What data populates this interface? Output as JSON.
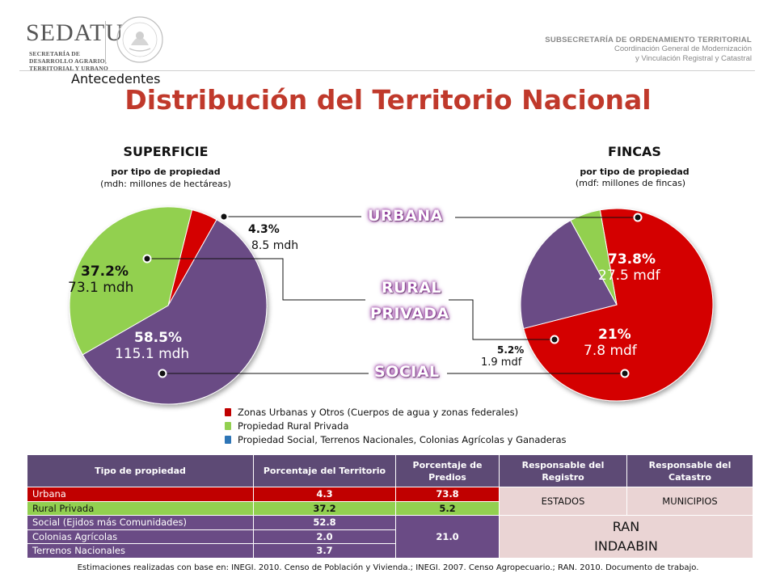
{
  "header": {
    "logo_text": "SEDATU",
    "logo_sub": [
      "SECRETARÍA DE",
      "DESARROLLO AGRARIO,",
      "TERRITORIAL Y URBANO"
    ],
    "right_line1": "SUBSECRETARÍA DE ORDENAMIENTO TERRITORIAL",
    "right_line2": "Coordinación General de Modernización",
    "right_line3": "y Vinculación Registral y Catastral"
  },
  "section_label": "Antecedentes",
  "title": "Distribución del Territorio Nacional",
  "superficie": {
    "title": "SUPERFICIE",
    "subtitle": "por tipo de propiedad",
    "unit": "(mdh: millones de hectáreas)"
  },
  "fincas": {
    "title": "FINCAS",
    "subtitle": "por tipo de propiedad",
    "unit": "(mdf: millones de fincas)"
  },
  "categories": {
    "urbana": "URBANA",
    "rural_1": "RURAL",
    "rural_2": "PRIVADA",
    "social": "SOCIAL"
  },
  "colors": {
    "urbana": "#d40000",
    "rural": "#92d050",
    "social": "#6a4b85",
    "title": "#c0392b",
    "table_header": "#5d4a75"
  },
  "chart_data": [
    {
      "type": "pie",
      "title": "SUPERFICIE",
      "categories": [
        "Urbana",
        "Rural Privada",
        "Social"
      ],
      "values": [
        4.3,
        37.2,
        58.5
      ],
      "labels_pct": [
        "4.3%",
        "37.2%",
        "58.5%"
      ],
      "labels_val": [
        "8.5 mdh",
        "73.1 mdh",
        "115.1 mdh"
      ],
      "absolute_values": [
        8.5,
        73.1,
        115.1
      ]
    },
    {
      "type": "pie",
      "title": "FINCAS",
      "categories": [
        "Urbana",
        "Rural Privada",
        "Social"
      ],
      "values": [
        73.8,
        5.2,
        21
      ],
      "labels_pct": [
        "73.8%",
        "5.2%",
        "21%"
      ],
      "labels_val": [
        "27.5 mdf",
        "1.9 mdf",
        "7.8 mdf"
      ],
      "absolute_values": [
        27.5,
        1.9,
        7.8
      ]
    }
  ],
  "legend": [
    {
      "label": "Zonas Urbanas y Otros (Cuerpos de agua y zonas federales)",
      "color": "#c00000"
    },
    {
      "label": "Propiedad Rural Privada",
      "color": "#92d050"
    },
    {
      "label": "Propiedad Social, Terrenos Nacionales, Colonias Agrícolas y Ganaderas",
      "color": "#2e75b6"
    }
  ],
  "table": {
    "headers": [
      "Tipo de propiedad",
      "Porcentaje del Territorio",
      "Porcentaje de Predios",
      "Responsable del Registro",
      "Responsable del Catastro"
    ],
    "rows": [
      {
        "tipo": "Urbana",
        "territorio": "4.3",
        "predios": "73.8"
      },
      {
        "tipo": "Rural Privada",
        "territorio": "37.2",
        "predios": "5.2"
      },
      {
        "tipo": "Social (Ejidos más Comunidades)",
        "territorio": "52.8"
      },
      {
        "tipo": "Colonias Agrícolas",
        "territorio": "2.0"
      },
      {
        "tipo": "Terrenos Nacionales",
        "territorio": "3.7"
      }
    ],
    "social_predios": "21.0",
    "registro_estados": "ESTADOS",
    "catastro_municipios": "MUNICIPIOS",
    "resp_ran": "RAN",
    "resp_indaabin": "INDAABIN"
  },
  "source": "Estimaciones realizadas con base en: INEGI. 2010. Censo de Población y Vivienda.; INEGI. 2007. Censo Agropecuario.; RAN. 2010. Documento de trabajo."
}
